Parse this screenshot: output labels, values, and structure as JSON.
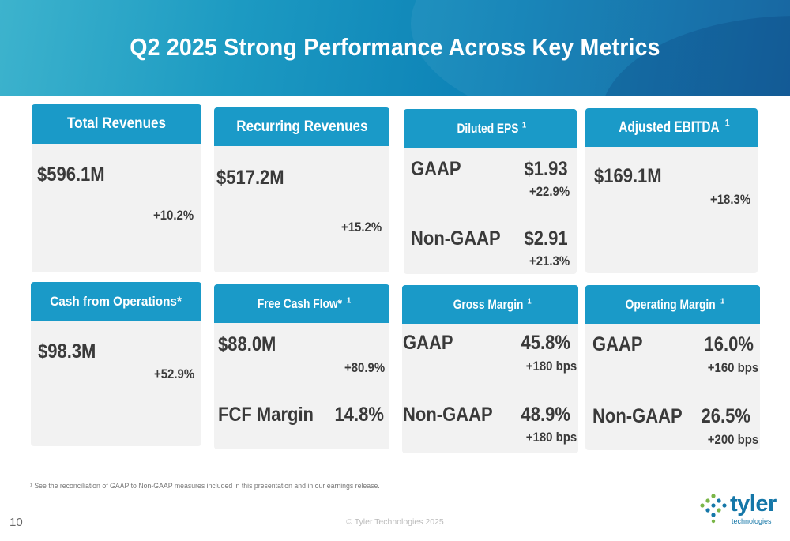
{
  "header": {
    "title": "Q2 2025 Strong Performance Across Key Metrics"
  },
  "cards": {
    "total_revenues": {
      "title": "Total Revenues",
      "value": "$596.1M",
      "change": "+10.2%"
    },
    "recurring_revenues": {
      "title": "Recurring Revenues",
      "value": "$517.2M",
      "change": "+15.2%"
    },
    "diluted_eps": {
      "title": "Diluted EPS",
      "title_sup": "1",
      "gaap_label": "GAAP",
      "gaap_value": "$1.93",
      "gaap_change": "+22.9%",
      "nongaap_label": "Non-GAAP",
      "nongaap_value": "$2.91",
      "nongaap_change": "+21.3%"
    },
    "adjusted_ebitda": {
      "title": "Adjusted EBITDA",
      "title_sup": "1",
      "value": "$169.1M",
      "change": "+18.3%"
    },
    "cash_from_operations": {
      "title": "Cash from Operations*",
      "value": "$98.3M",
      "change": "+52.9%"
    },
    "free_cash_flow": {
      "title": "Free Cash Flow*",
      "title_sup": "1",
      "value": "$88.0M",
      "change": "+80.9%",
      "margin_label": "FCF Margin",
      "margin_value": "14.8%"
    },
    "gross_margin": {
      "title": "Gross Margin",
      "title_sup": "1",
      "gaap_label": "GAAP",
      "gaap_value": "45.8%",
      "gaap_change": "+180 bps",
      "nongaap_label": "Non-GAAP",
      "nongaap_value": "48.9%",
      "nongaap_change": "+180 bps"
    },
    "operating_margin": {
      "title": "Operating Margin",
      "title_sup": "1",
      "gaap_label": "GAAP",
      "gaap_value": "16.0%",
      "gaap_change": "+160 bps",
      "nongaap_label": "Non-GAAP",
      "nongaap_value": "26.5%",
      "nongaap_change": "+200 bps"
    }
  },
  "footer": {
    "footnote": "¹ See the reconciliation of GAAP to Non-GAAP measures included in this presentation and in our earnings release.",
    "page_number": "10",
    "copyright": "© Tyler Technologies 2025",
    "logo_word": "tyler",
    "logo_sub": "technologies"
  },
  "colors": {
    "header_blue": "#1a9ac8",
    "card_bg": "#f2f2f2",
    "value_text": "#3a3a3a",
    "brand": "#1577a8",
    "logo_green": "#7ab648"
  }
}
